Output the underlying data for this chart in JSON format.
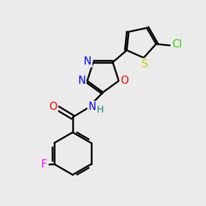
{
  "bg_color": "#ebebeb",
  "bond_color": "#000000",
  "bond_width": 1.8,
  "atom_colors": {
    "N": "#0000ff",
    "O": "#ff0000",
    "S": "#cccc00",
    "Cl": "#33cc00",
    "F": "#ff00ff",
    "C": "#000000",
    "H": "#008080"
  },
  "font_size": 10,
  "fig_size": [
    3.0,
    3.0
  ],
  "dpi": 100
}
